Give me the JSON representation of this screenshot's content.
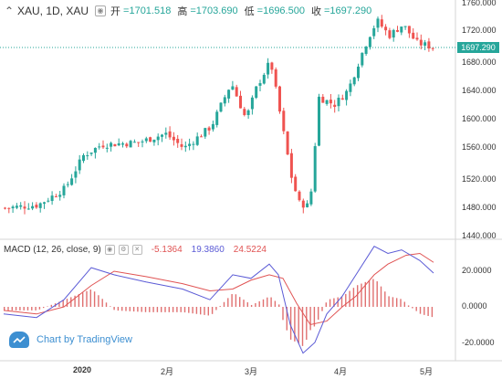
{
  "header": {
    "symbol": "XAU, 1D, XAU",
    "open_label": "开",
    "open": "=1701.518",
    "high_label": "高",
    "high": "=1703.690",
    "low_label": "低",
    "low": "=1696.500",
    "close_label": "收",
    "close": "=1697.290"
  },
  "price_axis": {
    "ticks": [
      "1760.000",
      "1720.000",
      "1680.000",
      "1640.000",
      "1600.000",
      "1560.000",
      "1520.000",
      "1480.000",
      "1440.000"
    ],
    "current_price": "1697.290",
    "current_price_color": "#26a69a"
  },
  "macd": {
    "label": "MACD (12, 26, close, 9)",
    "value_hist": "-5.1364",
    "value_macd": "19.3860",
    "value_signal": "24.5224",
    "ticks": [
      "20.0000",
      "0.0000",
      "-20.0000"
    ],
    "macd_color": "#5b5bd6",
    "signal_color": "#e05353",
    "hist_color": "#e07070"
  },
  "time_axis": {
    "ticks": [
      "2020",
      "2月",
      "3月",
      "4月",
      "5月"
    ]
  },
  "branding": {
    "text": "Chart by TradingView"
  },
  "colors": {
    "up": "#26a69a",
    "down": "#ef5350"
  }
}
